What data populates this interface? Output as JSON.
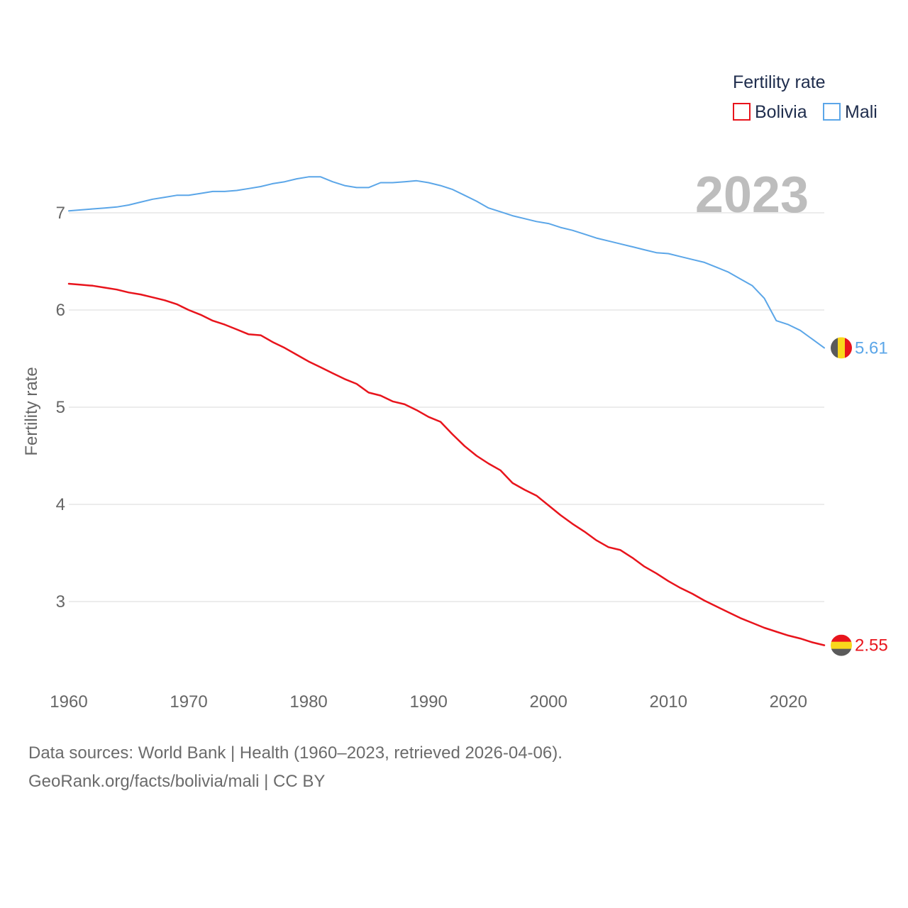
{
  "chart_data": {
    "type": "line",
    "title": "Fertility rate",
    "ylabel": "Fertility rate",
    "xlabel": "",
    "current_year_label": "2023",
    "xlim": [
      1960,
      2023
    ],
    "ylim": [
      2.3,
      7.6
    ],
    "x_ticks": [
      1960,
      1970,
      1980,
      1990,
      2000,
      2010,
      2020
    ],
    "y_ticks": [
      3,
      4,
      5,
      6,
      7
    ],
    "grid": true,
    "legend": {
      "title": "Fertility rate",
      "position": "top-right"
    },
    "x": [
      1960,
      1961,
      1962,
      1963,
      1964,
      1965,
      1966,
      1967,
      1968,
      1969,
      1970,
      1971,
      1972,
      1973,
      1974,
      1975,
      1976,
      1977,
      1978,
      1979,
      1980,
      1981,
      1982,
      1983,
      1984,
      1985,
      1986,
      1987,
      1988,
      1989,
      1990,
      1991,
      1992,
      1993,
      1994,
      1995,
      1996,
      1997,
      1998,
      1999,
      2000,
      2001,
      2002,
      2003,
      2004,
      2005,
      2006,
      2007,
      2008,
      2009,
      2010,
      2011,
      2012,
      2013,
      2014,
      2015,
      2016,
      2017,
      2018,
      2019,
      2020,
      2021,
      2022,
      2023
    ],
    "series": [
      {
        "name": "Bolivia",
        "color": "#e8141c",
        "end_label": "2.55",
        "flag_colors": [
          "#e8141c",
          "#f9d71c",
          "#5a5a5a"
        ],
        "values": [
          6.27,
          6.26,
          6.25,
          6.23,
          6.21,
          6.18,
          6.16,
          6.13,
          6.1,
          6.06,
          6.0,
          5.95,
          5.89,
          5.85,
          5.8,
          5.75,
          5.74,
          5.67,
          5.61,
          5.54,
          5.47,
          5.41,
          5.35,
          5.29,
          5.24,
          5.15,
          5.12,
          5.06,
          5.03,
          4.97,
          4.9,
          4.85,
          4.72,
          4.6,
          4.5,
          4.42,
          4.35,
          4.22,
          4.15,
          4.09,
          3.99,
          3.89,
          3.8,
          3.72,
          3.63,
          3.56,
          3.53,
          3.45,
          3.36,
          3.29,
          3.21,
          3.14,
          3.08,
          3.01,
          2.95,
          2.89,
          2.83,
          2.78,
          2.73,
          2.69,
          2.65,
          2.62,
          2.58,
          2.55
        ]
      },
      {
        "name": "Mali",
        "color": "#5ba6e8",
        "end_label": "5.61",
        "flag_colors": [
          "#5a5a5a",
          "#f9d71c",
          "#e8141c"
        ],
        "values": [
          7.02,
          7.03,
          7.04,
          7.05,
          7.06,
          7.08,
          7.11,
          7.14,
          7.16,
          7.18,
          7.18,
          7.2,
          7.22,
          7.22,
          7.23,
          7.25,
          7.27,
          7.3,
          7.32,
          7.35,
          7.37,
          7.37,
          7.32,
          7.28,
          7.26,
          7.26,
          7.31,
          7.31,
          7.32,
          7.33,
          7.31,
          7.28,
          7.24,
          7.18,
          7.12,
          7.05,
          7.01,
          6.97,
          6.94,
          6.91,
          6.89,
          6.85,
          6.82,
          6.78,
          6.74,
          6.71,
          6.68,
          6.65,
          6.62,
          6.59,
          6.58,
          6.55,
          6.52,
          6.49,
          6.44,
          6.39,
          6.32,
          6.25,
          6.12,
          5.89,
          5.85,
          5.79,
          5.7,
          5.61
        ]
      }
    ]
  },
  "footer": {
    "line1": "Data sources: World Bank | Health (1960–2023, retrieved 2026-04-06).",
    "line2": "GeoRank.org/facts/bolivia/mali | CC BY"
  }
}
